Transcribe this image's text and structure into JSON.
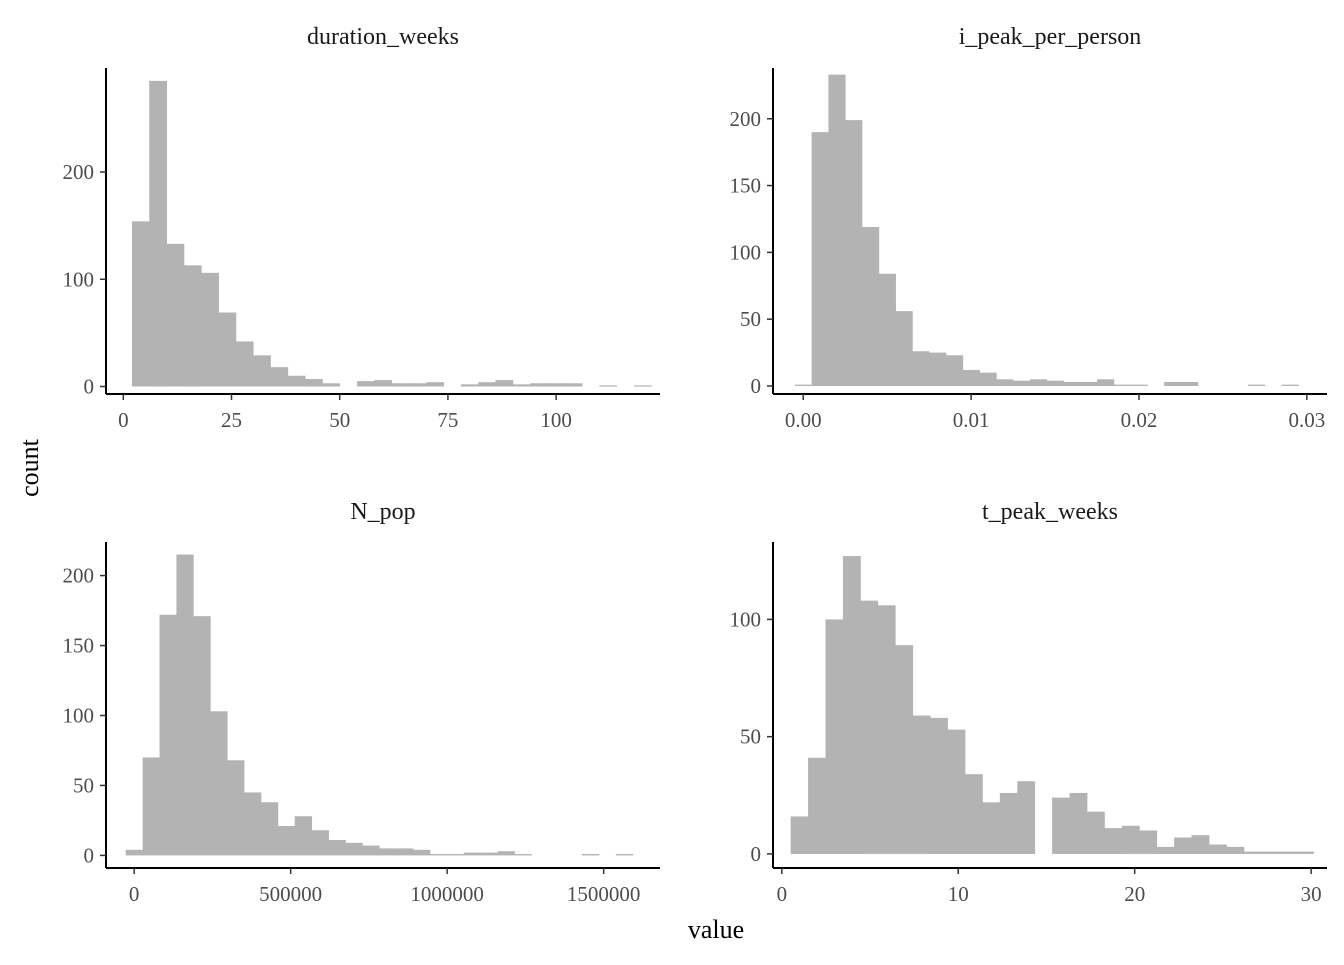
{
  "figure": {
    "xlabel": "value",
    "ylabel": "count",
    "bar_color": "#b3b3b3"
  },
  "chart_data": [
    {
      "type": "bar",
      "title": "duration_weeks",
      "xlim": [
        -4,
        124
      ],
      "ylim": [
        -7,
        297
      ],
      "xticks": [
        0,
        25,
        50,
        75,
        100
      ],
      "xtick_labels": [
        "0",
        "25",
        "50",
        "75",
        "100"
      ],
      "yticks": [
        0,
        100,
        200
      ],
      "ytick_labels": [
        "0",
        "100",
        "200"
      ],
      "bin_start": 2,
      "bin_width": 4,
      "values": [
        154,
        285,
        133,
        113,
        106,
        69,
        42,
        29,
        18,
        10,
        7,
        3,
        0,
        5,
        6,
        3,
        3,
        4,
        0,
        2,
        4,
        6,
        2,
        3,
        3,
        3,
        0,
        1,
        0,
        1
      ]
    },
    {
      "type": "bar",
      "title": "i_peak_per_person",
      "xlim": [
        -0.0018,
        0.0312
      ],
      "ylim": [
        -6,
        238
      ],
      "xticks": [
        0,
        0.01,
        0.02,
        0.03
      ],
      "xtick_labels": [
        "0.00",
        "0.01",
        "0.02",
        "0.03"
      ],
      "yticks": [
        0,
        50,
        100,
        150,
        200
      ],
      "ytick_labels": [
        "0",
        "50",
        "100",
        "150",
        "200"
      ],
      "bin_start": -0.0005,
      "bin_width": 0.001,
      "values": [
        1,
        190,
        233,
        199,
        119,
        84,
        56,
        26,
        25,
        23,
        12,
        10,
        5,
        4,
        5,
        4,
        3,
        3,
        5,
        1,
        1,
        0,
        3,
        3,
        0,
        0,
        0,
        1,
        0,
        1
      ]
    },
    {
      "type": "bar",
      "title": "N_pop",
      "xlim": [
        -90000,
        1680000
      ],
      "ylim": [
        -9,
        224
      ],
      "xticks": [
        0,
        500000,
        1000000,
        1500000
      ],
      "xtick_labels": [
        "0",
        "500000",
        "1000000",
        "1500000"
      ],
      "yticks": [
        0,
        50,
        100,
        150,
        200
      ],
      "ytick_labels": [
        "0",
        "50",
        "100",
        "150",
        "200"
      ],
      "bin_start": -27000,
      "bin_width": 54000,
      "values": [
        4,
        70,
        172,
        215,
        171,
        103,
        68,
        45,
        38,
        21,
        28,
        18,
        11,
        9,
        7,
        5,
        5,
        4,
        1,
        1,
        2,
        2,
        3,
        1,
        0,
        0,
        0,
        1,
        0,
        1
      ]
    },
    {
      "type": "bar",
      "title": "t_peak_weeks",
      "xlim": [
        -0.5,
        30.9
      ],
      "ylim": [
        -6,
        133
      ],
      "xticks": [
        0,
        10,
        20,
        30
      ],
      "xtick_labels": [
        "0",
        "10",
        "20",
        "30"
      ],
      "yticks": [
        0,
        50,
        100
      ],
      "ytick_labels": [
        "0",
        "50",
        "100"
      ],
      "bin_start": 0.5,
      "bin_width": 0.988,
      "values": [
        16,
        41,
        100,
        127,
        108,
        106,
        89,
        59,
        58,
        53,
        34,
        22,
        26,
        31,
        0,
        24,
        26,
        18,
        11,
        12,
        10,
        3,
        7,
        8,
        4,
        3,
        1,
        1,
        1,
        1
      ]
    }
  ]
}
